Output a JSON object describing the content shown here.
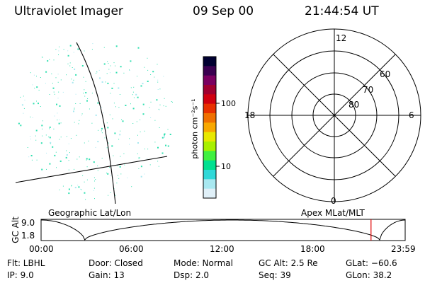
{
  "header": {
    "title": "Ultraviolet Imager",
    "date": "09 Sep 00",
    "time": "21:44:54 UT"
  },
  "colorbar": {
    "unit_label": "photon cm⁻²s⁻¹",
    "ticks": [
      {
        "label": "100",
        "value": 100
      },
      {
        "label": "10",
        "value": 10
      }
    ],
    "colors": [
      "#000030",
      "#3a0050",
      "#7a0060",
      "#a00030",
      "#d00010",
      "#e83000",
      "#f07000",
      "#f8a800",
      "#e8e800",
      "#a8f000",
      "#40f040",
      "#00e090",
      "#30d8d8",
      "#a8e8f0",
      "#e0f0f8"
    ]
  },
  "left_panel": {
    "caption": "Geographic Lat/Lon",
    "dot_color": "#30e0b0"
  },
  "polar_plot": {
    "caption": "Apex MLat/MLT",
    "mlt_labels": [
      "12",
      "18",
      "6",
      "0"
    ],
    "lat_labels": [
      "60",
      "70",
      "80"
    ],
    "lat_rings": [
      50,
      60,
      70,
      80
    ]
  },
  "timeline": {
    "ylabel": "GC Alt",
    "yticks": [
      "9.0",
      "1.8"
    ],
    "xticks": [
      "00:00",
      "06:00",
      "12:00",
      "18:00",
      "23:59"
    ],
    "marker_time_hours": 21.75,
    "marker_color": "#e00000"
  },
  "footer": {
    "flt": "Flt: LBHL",
    "ip": "IP:  9.0",
    "door": "Door: Closed",
    "gain": "Gain: 13",
    "mode": "Mode: Normal",
    "dsp": "Dsp:     2.0",
    "gcalt": "GC Alt: 2.5 Re",
    "seq": "Seq: 39",
    "glat": "GLat: −60.6",
    "glon": "GLon:  38.2"
  }
}
